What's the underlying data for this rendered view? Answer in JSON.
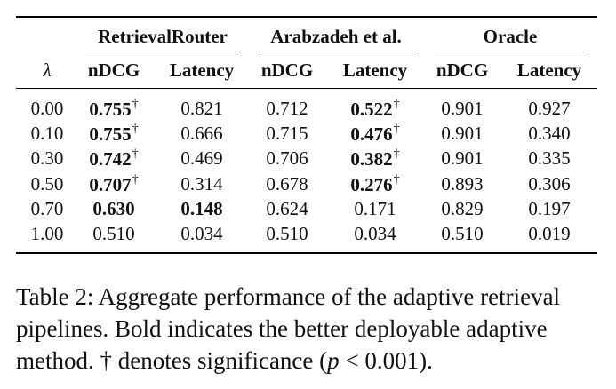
{
  "table": {
    "groups": [
      {
        "label": "RetrievalRouter"
      },
      {
        "label": "Arabzadeh et al."
      },
      {
        "label": "Oracle"
      }
    ],
    "lambda_label": "λ",
    "subcolumns": [
      "nDCG",
      "Latency",
      "nDCG",
      "Latency",
      "nDCG",
      "Latency"
    ],
    "rows": [
      {
        "lambda": "0.00",
        "cells": [
          {
            "v": "0.755",
            "bold": true,
            "dagger": true
          },
          {
            "v": "0.821"
          },
          {
            "v": "0.712"
          },
          {
            "v": "0.522",
            "bold": true,
            "dagger": true
          },
          {
            "v": "0.901"
          },
          {
            "v": "0.927"
          }
        ]
      },
      {
        "lambda": "0.10",
        "cells": [
          {
            "v": "0.755",
            "bold": true,
            "dagger": true
          },
          {
            "v": "0.666"
          },
          {
            "v": "0.715"
          },
          {
            "v": "0.476",
            "bold": true,
            "dagger": true
          },
          {
            "v": "0.901"
          },
          {
            "v": "0.340"
          }
        ]
      },
      {
        "lambda": "0.30",
        "cells": [
          {
            "v": "0.742",
            "bold": true,
            "dagger": true
          },
          {
            "v": "0.469"
          },
          {
            "v": "0.706"
          },
          {
            "v": "0.382",
            "bold": true,
            "dagger": true
          },
          {
            "v": "0.901"
          },
          {
            "v": "0.335"
          }
        ]
      },
      {
        "lambda": "0.50",
        "cells": [
          {
            "v": "0.707",
            "bold": true,
            "dagger": true
          },
          {
            "v": "0.314"
          },
          {
            "v": "0.678"
          },
          {
            "v": "0.276",
            "bold": true,
            "dagger": true
          },
          {
            "v": "0.893"
          },
          {
            "v": "0.306"
          }
        ]
      },
      {
        "lambda": "0.70",
        "cells": [
          {
            "v": "0.630",
            "bold": true
          },
          {
            "v": "0.148",
            "bold": true
          },
          {
            "v": "0.624"
          },
          {
            "v": "0.171"
          },
          {
            "v": "0.829"
          },
          {
            "v": "0.197"
          }
        ]
      },
      {
        "lambda": "1.00",
        "cells": [
          {
            "v": "0.510"
          },
          {
            "v": "0.034"
          },
          {
            "v": "0.510"
          },
          {
            "v": "0.034"
          },
          {
            "v": "0.510"
          },
          {
            "v": "0.019"
          }
        ]
      }
    ],
    "dagger_symbol": "†"
  },
  "caption": {
    "text_1": "Table 2: Aggregate performance of the adaptive retrieval pipelines. Bold indicates the better deployable adaptive method. † denotes significance (",
    "p_symbol": "p",
    "text_2": " < 0.001)."
  }
}
